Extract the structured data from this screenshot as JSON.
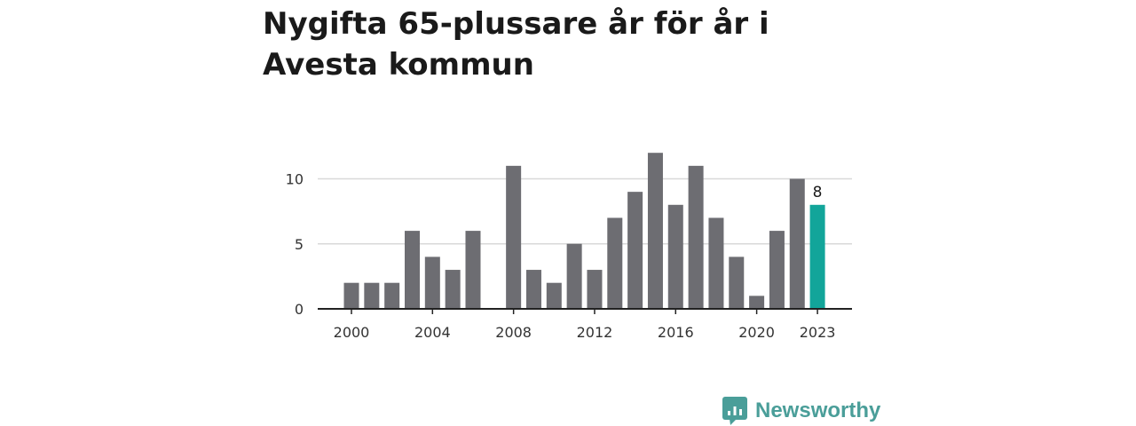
{
  "title": "Nygifta 65-plussare år för år i Avesta kommun",
  "brand": "Newsworthy",
  "colors": {
    "bar": "#6d6d72",
    "highlight": "#12a59a",
    "brand": "#4a9e99",
    "grid": "#d9d9d9",
    "axis": "#222222"
  },
  "chart_data": {
    "type": "bar",
    "title": "Nygifta 65-plussare år för år i Avesta kommun",
    "x": [
      2000,
      2001,
      2002,
      2003,
      2004,
      2005,
      2006,
      2007,
      2008,
      2009,
      2010,
      2011,
      2012,
      2013,
      2014,
      2015,
      2016,
      2017,
      2018,
      2019,
      2020,
      2021,
      2022,
      2023
    ],
    "values": [
      2,
      2,
      2,
      6,
      4,
      3,
      6,
      0,
      11,
      3,
      2,
      5,
      3,
      7,
      9,
      12,
      8,
      11,
      7,
      4,
      1,
      6,
      10,
      8
    ],
    "highlight_index": 23,
    "data_labels": [
      {
        "x": 2023,
        "text": "8"
      }
    ],
    "xticks": [
      2000,
      2004,
      2008,
      2012,
      2016,
      2020,
      2023
    ],
    "xtick_labels": [
      "2000",
      "2004",
      "2008",
      "2012",
      "2016",
      "2020",
      "2023"
    ],
    "yticks": [
      0,
      5,
      10
    ],
    "ytick_labels": [
      "0",
      "5",
      "10"
    ],
    "ylim": [
      0,
      12
    ],
    "xlabel": "",
    "ylabel": "",
    "grid": true,
    "legend": "none"
  }
}
